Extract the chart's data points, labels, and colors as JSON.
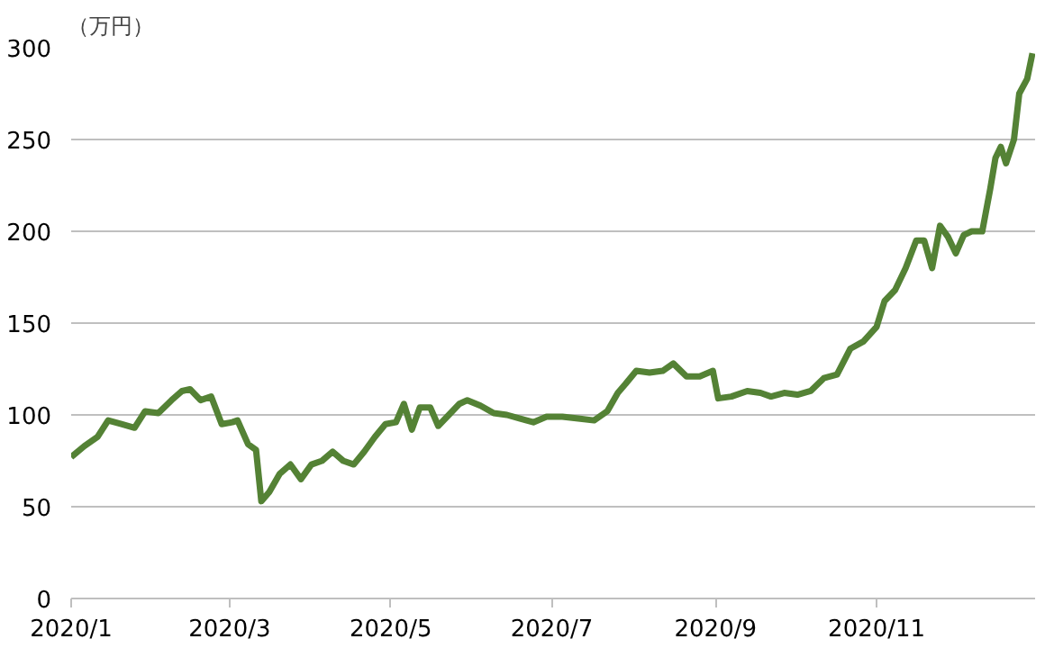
{
  "chart_data": {
    "type": "line",
    "ylabel": "（万円）",
    "x": [
      "2020-01-01",
      "2020-01-06",
      "2020-01-11",
      "2020-01-15",
      "2020-01-20",
      "2020-01-25",
      "2020-01-29",
      "2020-02-03",
      "2020-02-08",
      "2020-02-12",
      "2020-02-15",
      "2020-02-19",
      "2020-02-23",
      "2020-02-27",
      "2020-03-02",
      "2020-03-04",
      "2020-03-08",
      "2020-03-11",
      "2020-03-13",
      "2020-03-16",
      "2020-03-20",
      "2020-03-24",
      "2020-03-28",
      "2020-04-01",
      "2020-04-05",
      "2020-04-09",
      "2020-04-13",
      "2020-04-17",
      "2020-04-21",
      "2020-04-25",
      "2020-04-29",
      "2020-05-03",
      "2020-05-06",
      "2020-05-09",
      "2020-05-12",
      "2020-05-16",
      "2020-05-19",
      "2020-05-23",
      "2020-05-27",
      "2020-05-30",
      "2020-06-04",
      "2020-06-09",
      "2020-06-14",
      "2020-06-19",
      "2020-06-24",
      "2020-06-29",
      "2020-07-05",
      "2020-07-11",
      "2020-07-17",
      "2020-07-22",
      "2020-07-26",
      "2020-07-29",
      "2020-08-02",
      "2020-08-07",
      "2020-08-12",
      "2020-08-16",
      "2020-08-21",
      "2020-08-26",
      "2020-08-31",
      "2020-09-02",
      "2020-09-07",
      "2020-09-13",
      "2020-09-18",
      "2020-09-22",
      "2020-09-27",
      "2020-10-02",
      "2020-10-07",
      "2020-10-12",
      "2020-10-17",
      "2020-10-22",
      "2020-10-27",
      "2020-11-01",
      "2020-11-04",
      "2020-11-08",
      "2020-11-12",
      "2020-11-16",
      "2020-11-19",
      "2020-11-22",
      "2020-11-25",
      "2020-11-28",
      "2020-12-01",
      "2020-12-04",
      "2020-12-07",
      "2020-12-11",
      "2020-12-14",
      "2020-12-16",
      "2020-12-18",
      "2020-12-20",
      "2020-12-23",
      "2020-12-25",
      "2020-12-28",
      "2020-12-30"
    ],
    "series": [
      {
        "color": "#548235",
        "values": [
          77,
          83,
          88,
          97,
          95,
          93,
          102,
          101,
          108,
          113,
          114,
          108,
          110,
          95,
          96,
          97,
          84,
          81,
          53,
          58,
          68,
          73,
          65,
          73,
          75,
          80,
          75,
          73,
          80,
          88,
          95,
          96,
          106,
          92,
          104,
          104,
          94,
          100,
          106,
          108,
          105,
          101,
          100,
          98,
          96,
          99,
          99,
          98,
          97,
          102,
          112,
          117,
          124,
          123,
          124,
          128,
          121,
          121,
          124,
          109,
          110,
          113,
          112,
          110,
          112,
          111,
          113,
          120,
          122,
          136,
          140,
          148,
          162,
          168,
          180,
          195,
          195,
          180,
          203,
          197,
          188,
          198,
          200,
          200,
          223,
          240,
          246,
          237,
          250,
          275,
          283,
          297
        ]
      }
    ],
    "xlim": [
      "2020-01-01",
      "2020-12-31"
    ],
    "xticks": [
      {
        "value": "2020-01-01",
        "label": "2020/1"
      },
      {
        "value": "2020-03-01",
        "label": "2020/3"
      },
      {
        "value": "2020-05-01",
        "label": "2020/5"
      },
      {
        "value": "2020-07-01",
        "label": "2020/7"
      },
      {
        "value": "2020-09-01",
        "label": "2020/9"
      },
      {
        "value": "2020-11-01",
        "label": "2020/11"
      }
    ],
    "ylim": [
      0,
      300
    ],
    "yticks": [
      0,
      50,
      100,
      150,
      200,
      250,
      300
    ],
    "grid": "y",
    "line_style": "solid"
  }
}
